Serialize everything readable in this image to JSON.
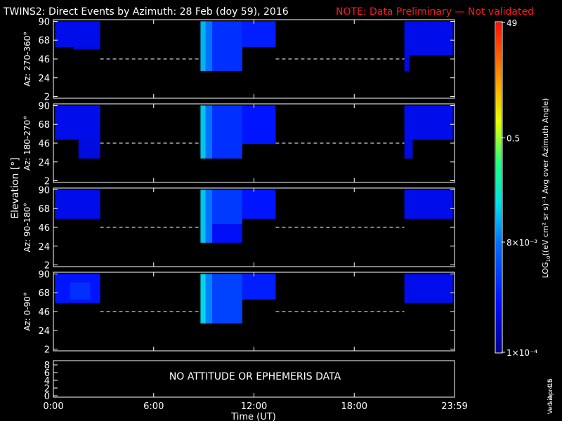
{
  "header": {
    "title": "TWINS2: Direct Events by Azimuth: 28 Feb (doy  59), 2016",
    "note": "NOTE: Data Preliminary — Not validated",
    "note_color": "#ff1a1a"
  },
  "chart_data": {
    "type": "heatmap",
    "ylabel": "Elevation [°]",
    "xlabel": "Time (UT)",
    "x_ticks": [
      "0:00",
      "6:00",
      "12:00",
      "18:00",
      "23:59"
    ],
    "x_range_hours": [
      0,
      24
    ],
    "panels": [
      {
        "label": "Az: 270-360°",
        "y_ticks": [
          "90",
          "68",
          "46",
          "24",
          "2"
        ],
        "blocks": [
          {
            "t0": 0.1,
            "t1": 2.8,
            "e0": 60,
            "e1": 90,
            "log": -3.3
          },
          {
            "t0": 1.2,
            "t1": 2.8,
            "e0": 57,
            "e1": 62,
            "log": -3.4
          },
          {
            "t0": 8.8,
            "t1": 9.1,
            "e0": 32,
            "e1": 90,
            "log": -1.7
          },
          {
            "t0": 9.1,
            "t1": 9.5,
            "e0": 32,
            "e1": 90,
            "log": -2.1
          },
          {
            "t0": 9.5,
            "t1": 11.3,
            "e0": 32,
            "e1": 90,
            "log": -2.8
          },
          {
            "t0": 11.3,
            "t1": 13.3,
            "e0": 60,
            "e1": 90,
            "log": -3.0
          },
          {
            "t0": 21.0,
            "t1": 23.9,
            "e0": 50,
            "e1": 90,
            "log": -3.3
          },
          {
            "t0": 21.0,
            "t1": 21.3,
            "e0": 32,
            "e1": 50,
            "log": -3.4
          }
        ]
      },
      {
        "label": "Az: 180-270°",
        "y_ticks": [
          "90",
          "68",
          "46",
          "24",
          "2"
        ],
        "blocks": [
          {
            "t0": 0.1,
            "t1": 2.8,
            "e0": 50,
            "e1": 90,
            "log": -3.3
          },
          {
            "t0": 1.5,
            "t1": 2.8,
            "e0": 28,
            "e1": 52,
            "log": -3.4
          },
          {
            "t0": 8.8,
            "t1": 9.1,
            "e0": 28,
            "e1": 90,
            "log": -1.6
          },
          {
            "t0": 9.1,
            "t1": 9.5,
            "e0": 28,
            "e1": 90,
            "log": -2.1
          },
          {
            "t0": 9.5,
            "t1": 11.3,
            "e0": 28,
            "e1": 90,
            "log": -2.8
          },
          {
            "t0": 11.3,
            "t1": 13.3,
            "e0": 45,
            "e1": 90,
            "log": -3.1
          },
          {
            "t0": 21.0,
            "t1": 23.9,
            "e0": 50,
            "e1": 90,
            "log": -3.3
          },
          {
            "t0": 21.0,
            "t1": 21.5,
            "e0": 28,
            "e1": 50,
            "log": -3.4
          }
        ]
      },
      {
        "label": "Az: 90-180°",
        "y_ticks": [
          "90",
          "68",
          "46",
          "24",
          "2"
        ],
        "blocks": [
          {
            "t0": 0.1,
            "t1": 2.8,
            "e0": 56,
            "e1": 90,
            "log": -3.3
          },
          {
            "t0": 8.8,
            "t1": 9.1,
            "e0": 28,
            "e1": 90,
            "log": -1.6
          },
          {
            "t0": 9.1,
            "t1": 9.5,
            "e0": 28,
            "e1": 90,
            "log": -2.1
          },
          {
            "t0": 9.5,
            "t1": 11.3,
            "e0": 50,
            "e1": 90,
            "log": -2.7
          },
          {
            "t0": 9.5,
            "t1": 11.3,
            "e0": 28,
            "e1": 50,
            "log": -3.2
          },
          {
            "t0": 11.3,
            "t1": 13.3,
            "e0": 56,
            "e1": 90,
            "log": -3.1
          },
          {
            "t0": 21.0,
            "t1": 23.9,
            "e0": 56,
            "e1": 90,
            "log": -3.3
          }
        ]
      },
      {
        "label": "Az: 0-90°",
        "y_ticks": [
          "90",
          "68",
          "46",
          "24",
          "2"
        ],
        "blocks": [
          {
            "t0": 0.1,
            "t1": 2.8,
            "e0": 56,
            "e1": 90,
            "log": -3.1
          },
          {
            "t0": 1.0,
            "t1": 2.2,
            "e0": 60,
            "e1": 80,
            "log": -2.8
          },
          {
            "t0": 8.8,
            "t1": 9.1,
            "e0": 32,
            "e1": 90,
            "log": -1.5
          },
          {
            "t0": 9.1,
            "t1": 9.5,
            "e0": 32,
            "e1": 90,
            "log": -2.0
          },
          {
            "t0": 9.5,
            "t1": 11.3,
            "e0": 32,
            "e1": 90,
            "log": -2.6
          },
          {
            "t0": 11.3,
            "t1": 13.3,
            "e0": 60,
            "e1": 90,
            "log": -3.0
          },
          {
            "t0": 21.0,
            "t1": 23.9,
            "e0": 56,
            "e1": 90,
            "log": -3.3
          }
        ]
      }
    ],
    "dashed_line_elevation": 46,
    "dashed_segments": [
      [
        2.8,
        8.8
      ],
      [
        13.3,
        21.0
      ]
    ],
    "bottom_panel": {
      "y_ticks": [
        "8",
        "6",
        "4",
        "2",
        "0"
      ],
      "message": "NO ATTITUDE OR EPHEMERIS DATA"
    },
    "colorbar": {
      "label": "LOG",
      "label_sub": "10",
      "label_rest": "((eV cm² sr s)⁻¹ Avg over Azimuth Angle)",
      "ticks": [
        {
          "text": "49",
          "log": 1.69
        },
        {
          "text": "0.5",
          "log": -0.3
        },
        {
          "text": "8×10⁻³",
          "log": -2.1
        },
        {
          "text": "1×10⁻⁴",
          "log": -4.0
        }
      ],
      "range_log": [
        -4.0,
        1.69
      ]
    }
  },
  "footer": {
    "date": "1 Apr 16",
    "version": "Version 4.5"
  }
}
